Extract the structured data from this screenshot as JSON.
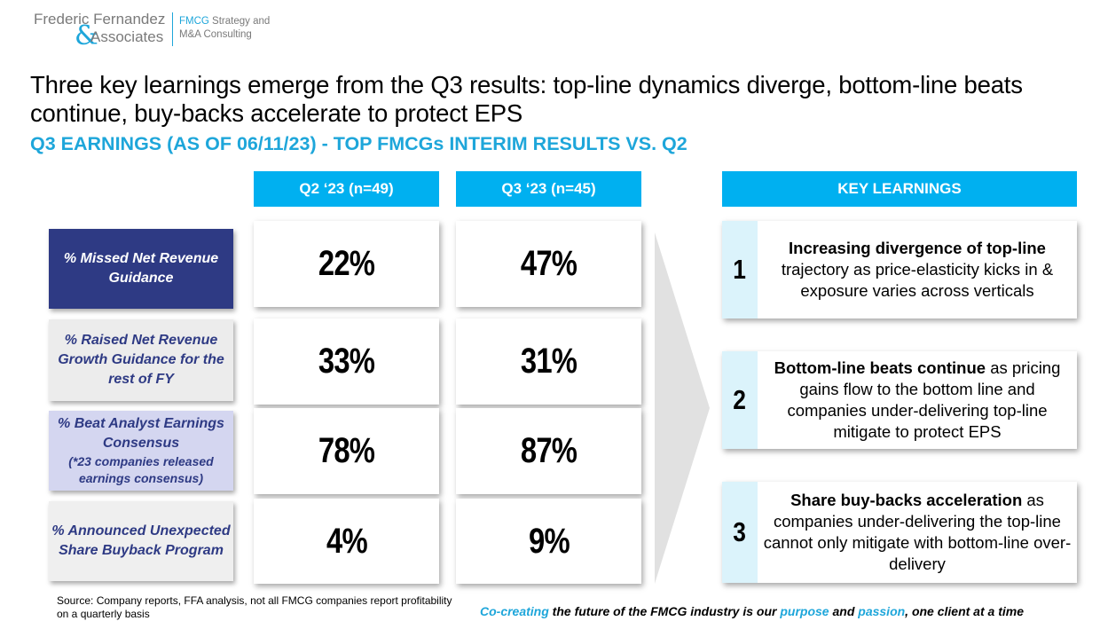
{
  "logo": {
    "name_line1": "Frederic Fernandez",
    "ampersand": "&",
    "name_line2": "Associates",
    "tag_brand": "FMCG",
    "tag_line1_rest": " Strategy and",
    "tag_line2": "M&A Consulting"
  },
  "headline": "Three key learnings emerge from the Q3 results: top-line dynamics diverge, bottom-line beats continue, buy-backs accelerate to protect EPS",
  "subtitle": "Q3 EARNINGS (AS OF 06/11/23) - TOP FMCGs INTERIM RESULTS VS. Q2",
  "columns": {
    "q2": "Q2 ‘23 (n=49)",
    "q3": "Q3 ‘23  (n=45)",
    "learnings": "KEY LEARNINGS"
  },
  "rows": [
    {
      "label": "% Missed Net Revenue Guidance",
      "note": "",
      "q2": "22%",
      "q3": "47%"
    },
    {
      "label": "% Raised Net Revenue Growth Guidance for the rest of FY",
      "note": "",
      "q2": "33%",
      "q3": "31%"
    },
    {
      "label": "% Beat Analyst Earnings Consensus",
      "note": "(*23 companies released earnings consensus)",
      "q2": "78%",
      "q3": "87%"
    },
    {
      "label": "% Announced Unexpected Share Buyback Program",
      "note": "",
      "q2": "4%",
      "q3": "9%"
    }
  ],
  "learnings": [
    {
      "num": "1",
      "bold": "Increasing divergence of top-line",
      "rest": " trajectory as price-elasticity kicks in & exposure varies across verticals"
    },
    {
      "num": "2",
      "bold": "Bottom-line beats continue",
      "rest": " as pricing gains flow to the bottom line and companies under-delivering top-line mitigate to protect EPS"
    },
    {
      "num": "3",
      "bold": "Share buy-backs acceleration",
      "rest": " as companies under-delivering the top-line cannot only mitigate with bottom-line over-delivery"
    }
  ],
  "source": "Source: Company reports, FFA analysis, not all FMCG companies report profitability on a quarterly basis",
  "footer": {
    "p1": "Co-creating",
    "p2": " the future of the FMCG industry is our ",
    "p3": "purpose",
    "p4": " and ",
    "p5": "passion",
    "p6": ", one client at a time"
  },
  "colors": {
    "accent": "#00b0f0",
    "navy": "#2e3a84",
    "number_bg": "#dbf3fb"
  }
}
